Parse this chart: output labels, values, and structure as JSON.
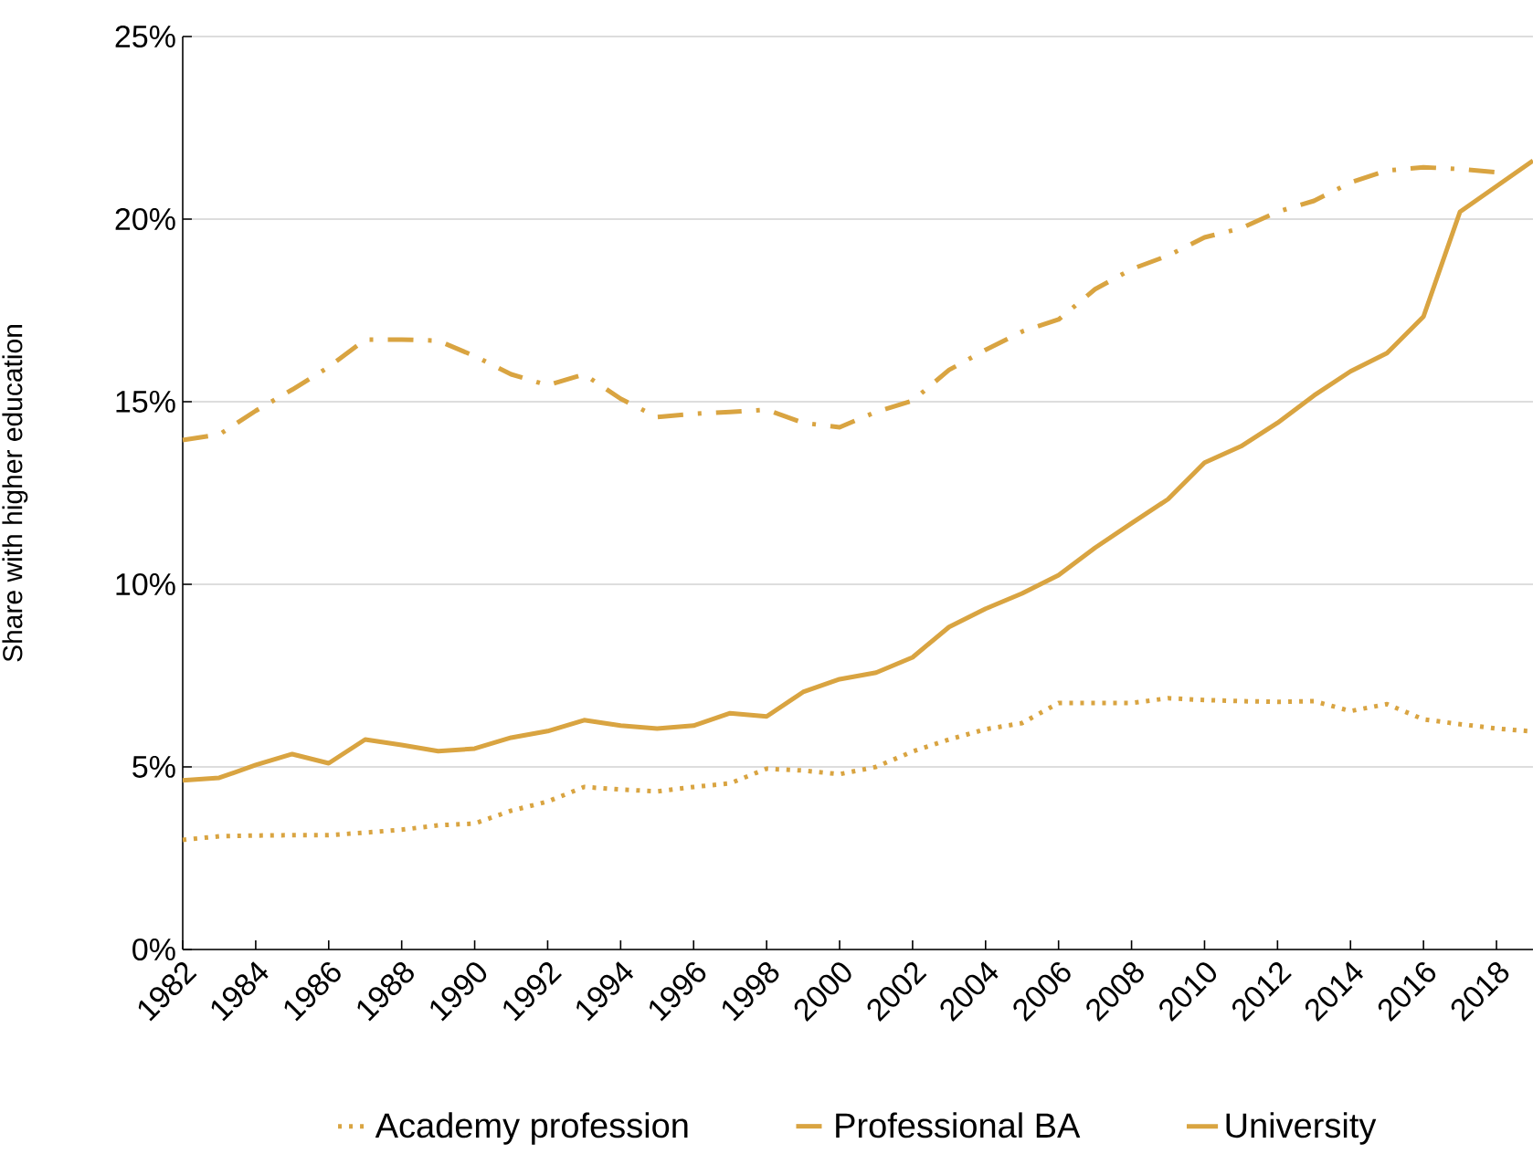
{
  "chart_data": {
    "type": "line",
    "ylabel": "Share with higher education",
    "x": [
      1982,
      1983,
      1984,
      1985,
      1986,
      1987,
      1988,
      1989,
      1990,
      1991,
      1992,
      1993,
      1994,
      1995,
      1996,
      1997,
      1998,
      1999,
      2000,
      2001,
      2002,
      2003,
      2004,
      2005,
      2006,
      2007,
      2008,
      2009,
      2010,
      2011,
      2012,
      2013,
      2014,
      2015,
      2016,
      2017,
      2018,
      2019
    ],
    "series": [
      {
        "name": "Academy profession",
        "color": "#d9a441",
        "line_style": "dotted",
        "values": [
          3.0,
          3.1,
          3.12,
          3.13,
          3.13,
          3.2,
          3.28,
          3.4,
          3.45,
          3.8,
          4.05,
          4.45,
          4.38,
          4.33,
          4.45,
          4.55,
          4.95,
          4.9,
          4.8,
          5.0,
          5.42,
          5.75,
          6.03,
          6.2,
          6.75,
          6.75,
          6.75,
          6.88,
          6.83,
          6.8,
          6.78,
          6.8,
          6.53,
          6.72,
          6.3,
          6.17,
          6.05,
          5.97
        ]
      },
      {
        "name": "Professional BA",
        "color": "#d9a441",
        "line_style": "dashdot",
        "values": [
          13.95,
          14.1,
          14.75,
          15.33,
          15.95,
          16.7,
          16.7,
          16.67,
          16.25,
          15.75,
          15.45,
          15.75,
          15.08,
          14.58,
          14.67,
          14.72,
          14.78,
          14.42,
          14.3,
          14.72,
          15.03,
          15.87,
          16.42,
          16.92,
          17.25,
          18.08,
          18.63,
          19.0,
          19.5,
          19.75,
          20.2,
          20.5,
          21.0,
          21.33,
          21.42,
          21.37,
          21.28,
          null
        ]
      },
      {
        "name": "University",
        "color": "#d9a441",
        "line_style": "solid",
        "values": [
          4.63,
          4.7,
          5.05,
          5.35,
          5.1,
          5.75,
          5.6,
          5.43,
          5.5,
          5.8,
          5.98,
          6.28,
          6.13,
          6.05,
          6.13,
          6.47,
          6.38,
          7.05,
          7.4,
          7.58,
          8.0,
          8.83,
          9.33,
          9.75,
          10.25,
          11.0,
          11.67,
          12.33,
          13.33,
          13.78,
          14.42,
          15.17,
          15.83,
          16.33,
          17.33,
          20.2,
          20.9,
          21.6
        ]
      }
    ],
    "xlim": [
      1982,
      2019
    ],
    "xticks": [
      1982,
      1984,
      1986,
      1988,
      1990,
      1992,
      1994,
      1996,
      1998,
      2000,
      2002,
      2004,
      2006,
      2008,
      2010,
      2012,
      2014,
      2016,
      2018
    ],
    "ylim": [
      0,
      25
    ],
    "yticks": [
      {
        "value": 0,
        "label": "0%"
      },
      {
        "value": 5,
        "label": "5%"
      },
      {
        "value": 10,
        "label": "10%"
      },
      {
        "value": 15,
        "label": "15%"
      },
      {
        "value": 20,
        "label": "20%"
      },
      {
        "value": 25,
        "label": "25%"
      }
    ],
    "grid": "y",
    "legend": "bottom",
    "marker": "none"
  }
}
